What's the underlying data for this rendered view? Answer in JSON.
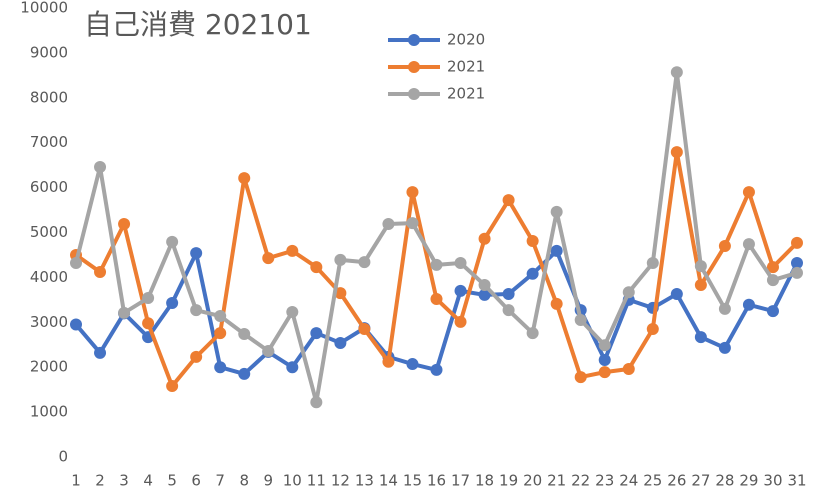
{
  "chart_data": {
    "type": "line",
    "title": "自己消費 202101",
    "categories": [
      "1",
      "2",
      "3",
      "4",
      "5",
      "6",
      "7",
      "8",
      "9",
      "10",
      "11",
      "12",
      "13",
      "14",
      "15",
      "16",
      "17",
      "18",
      "19",
      "20",
      "21",
      "22",
      "23",
      "24",
      "25",
      "26",
      "27",
      "28",
      "29",
      "30",
      "31"
    ],
    "series": [
      {
        "name": "2020",
        "color": "#4472c4",
        "values": [
          2950,
          2320,
          3200,
          2670,
          3430,
          4540,
          2000,
          1850,
          2340,
          2000,
          2760,
          2540,
          2870,
          2230,
          2070,
          1940,
          3700,
          3610,
          3630,
          4080,
          4590,
          3270,
          2160,
          3500,
          3320,
          3630,
          2670,
          2430,
          3390,
          3250,
          4320
        ]
      },
      {
        "name": "2021",
        "color": "#ed7d31",
        "values": [
          4500,
          4120,
          5190,
          2980,
          1580,
          2230,
          2760,
          6210,
          4430,
          4590,
          4230,
          3650,
          2850,
          2120,
          5900,
          3520,
          3010,
          4860,
          5720,
          4810,
          3410,
          1780,
          1890,
          1960,
          2850,
          6790,
          3830,
          4700,
          5900,
          4230,
          4770
        ]
      },
      {
        "name": "2021",
        "color": "#a5a5a5",
        "values": [
          4320,
          6460,
          3210,
          3540,
          4790,
          3270,
          3140,
          2740,
          2360,
          3230,
          1220,
          4390,
          4340,
          5190,
          5210,
          4280,
          4320,
          3830,
          3270,
          2760,
          5460,
          3050,
          2490,
          3670,
          4320,
          8570,
          4250,
          3300,
          4740,
          3940,
          4100
        ]
      }
    ],
    "ylim": [
      0,
      10000
    ],
    "yticks": [
      0,
      1000,
      2000,
      3000,
      4000,
      5000,
      6000,
      7000,
      8000,
      9000,
      10000
    ],
    "grid": false
  }
}
